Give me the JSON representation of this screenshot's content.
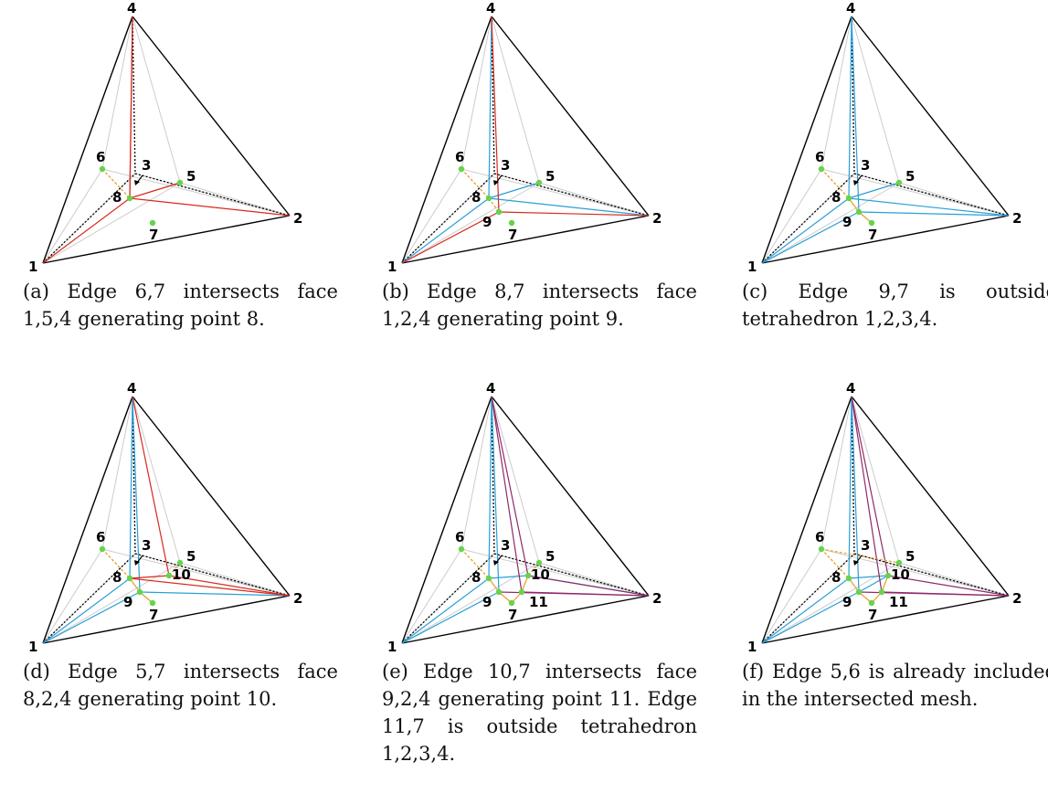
{
  "colors": {
    "outline": "#000000",
    "grey": "#cccccc",
    "red": "#d62a1e",
    "blue": "#2a9fd6",
    "purple": "#8e2a6a",
    "orange": "#e59e2a",
    "green_point": "#66d44a",
    "black_dotted": "#000000"
  },
  "panels": [
    {
      "id": "a",
      "caption": "(a) Edge 6,7 intersects face 1,5,4 generating point 8.",
      "points": [
        "1",
        "2",
        "3",
        "4",
        "5",
        "6",
        "7",
        "8"
      ]
    },
    {
      "id": "b",
      "caption": "(b) Edge 8,7 intersects face 1,2,4 generating point 9.",
      "points": [
        "1",
        "2",
        "3",
        "4",
        "5",
        "6",
        "7",
        "8",
        "9"
      ]
    },
    {
      "id": "c",
      "caption": "(c) Edge 9,7 is outside tetrahedron 1,2,3,4.",
      "points": [
        "1",
        "2",
        "3",
        "4",
        "5",
        "6",
        "7",
        "8",
        "9"
      ]
    },
    {
      "id": "d",
      "caption": "(d) Edge 5,7 intersects face 8,2,4 generating point 10.",
      "points": [
        "1",
        "2",
        "3",
        "4",
        "5",
        "6",
        "7",
        "8",
        "9",
        "10"
      ]
    },
    {
      "id": "e",
      "caption": "(e) Edge 10,7 intersects face 9,2,4 generating point 11. Edge 11,7 is outside tetrahedron 1,2,3,4.",
      "points": [
        "1",
        "2",
        "3",
        "4",
        "5",
        "6",
        "7",
        "8",
        "9",
        "10",
        "11"
      ]
    },
    {
      "id": "f",
      "caption": "(f) Edge 5,6 is already included in the intersected mesh.",
      "points": [
        "1",
        "2",
        "3",
        "4",
        "5",
        "6",
        "7",
        "8",
        "9",
        "10",
        "11"
      ]
    }
  ]
}
